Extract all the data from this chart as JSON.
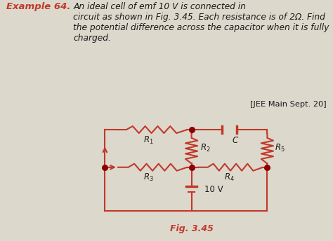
{
  "title_prefix": "Example 64.",
  "title_body": "An ideal cell of emf 10 V is connected in\ncircuit as shown in Fig. 3.45. Each resistance is of 2Ω. Find\nthe potential difference across the capacitor when it is fully\ncharged.",
  "ref_text": "[JEE Main Sept. 20]",
  "fig_label": "Fig. 3.45",
  "battery_label": "10 V",
  "wire_color": "#c0392b",
  "node_color": "#8b0000",
  "bg_color": "#ddd8cc",
  "title_color": "#c0392b",
  "body_color": "#1a1a1a",
  "lw": 1.5,
  "figsize": [
    4.74,
    3.44
  ],
  "dpi": 100
}
